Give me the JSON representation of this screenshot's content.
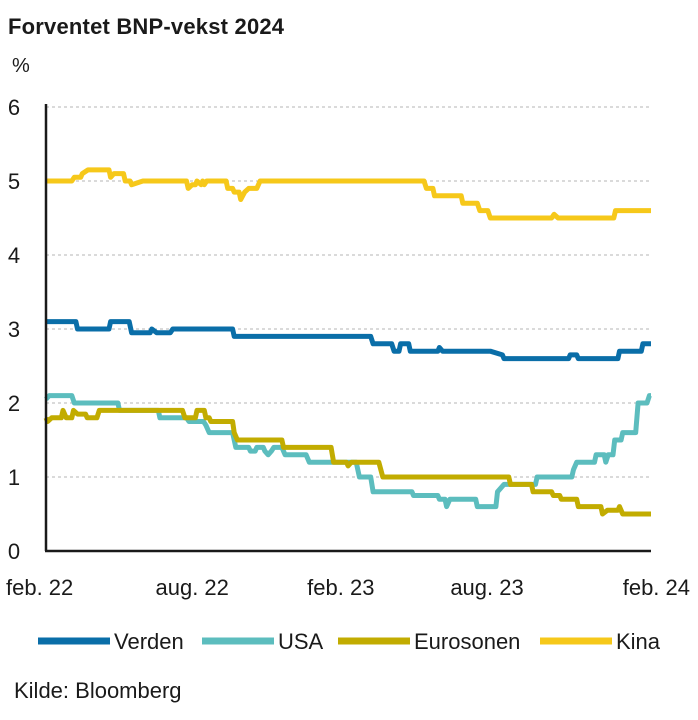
{
  "chart_data": {
    "type": "line",
    "title": "Forventet BNP-vekst 2024",
    "ylabel": "%",
    "ylim": [
      0,
      6
    ],
    "yticks": [
      "0",
      "1",
      "2",
      "3",
      "4",
      "5",
      "6"
    ],
    "xlim": [
      "2022-02-01",
      "2024-02-20"
    ],
    "xticks": [
      {
        "label": "feb. 22",
        "date": "2022-02-01"
      },
      {
        "label": "aug. 22",
        "date": "2022-08-01"
      },
      {
        "label": "feb. 23",
        "date": "2023-02-01"
      },
      {
        "label": "aug. 23",
        "date": "2023-08-01"
      },
      {
        "label": "feb. 24",
        "date": "2024-02-01"
      }
    ],
    "grid": "horizontal-dashed",
    "legend_position": "bottom",
    "source": "Kilde: Bloomberg",
    "series": [
      {
        "name": "Verden",
        "color": "#0a6ea8",
        "points": [
          [
            "2022-02-01",
            3.1
          ],
          [
            "2022-03-10",
            3.1
          ],
          [
            "2022-03-12",
            3.0
          ],
          [
            "2022-04-20",
            3.0
          ],
          [
            "2022-04-22",
            3.1
          ],
          [
            "2022-05-15",
            3.1
          ],
          [
            "2022-05-18",
            2.95
          ],
          [
            "2022-06-10",
            2.95
          ],
          [
            "2022-06-12",
            3.0
          ],
          [
            "2022-06-18",
            2.95
          ],
          [
            "2022-07-05",
            2.95
          ],
          [
            "2022-07-08",
            3.0
          ],
          [
            "2022-09-20",
            3.0
          ],
          [
            "2022-09-22",
            2.9
          ],
          [
            "2023-01-25",
            2.9
          ],
          [
            "2023-03-10",
            2.9
          ],
          [
            "2023-03-13",
            2.8
          ],
          [
            "2023-04-05",
            2.8
          ],
          [
            "2023-04-08",
            2.7
          ],
          [
            "2023-04-14",
            2.7
          ],
          [
            "2023-04-16",
            2.8
          ],
          [
            "2023-04-26",
            2.8
          ],
          [
            "2023-04-28",
            2.7
          ],
          [
            "2023-06-01",
            2.7
          ],
          [
            "2023-06-03",
            2.75
          ],
          [
            "2023-06-07",
            2.7
          ],
          [
            "2023-08-05",
            2.7
          ],
          [
            "2023-08-20",
            2.65
          ],
          [
            "2023-08-22",
            2.6
          ],
          [
            "2023-11-10",
            2.6
          ],
          [
            "2023-11-12",
            2.65
          ],
          [
            "2023-11-20",
            2.65
          ],
          [
            "2023-11-22",
            2.6
          ],
          [
            "2024-01-10",
            2.6
          ],
          [
            "2024-01-12",
            2.7
          ],
          [
            "2024-02-08",
            2.7
          ],
          [
            "2024-02-10",
            2.8
          ],
          [
            "2024-02-20",
            2.8
          ]
        ]
      },
      {
        "name": "USA",
        "color": "#5cbdbe",
        "points": [
          [
            "2022-02-01",
            2.05
          ],
          [
            "2022-02-05",
            2.1
          ],
          [
            "2022-03-05",
            2.1
          ],
          [
            "2022-03-08",
            2.0
          ],
          [
            "2022-05-01",
            2.0
          ],
          [
            "2022-05-03",
            1.9
          ],
          [
            "2022-06-20",
            1.9
          ],
          [
            "2022-06-22",
            1.8
          ],
          [
            "2022-07-25",
            1.8
          ],
          [
            "2022-07-28",
            1.75
          ],
          [
            "2022-08-15",
            1.75
          ],
          [
            "2022-08-18",
            1.7
          ],
          [
            "2022-08-22",
            1.6
          ],
          [
            "2022-09-20",
            1.6
          ],
          [
            "2022-09-24",
            1.4
          ],
          [
            "2022-10-10",
            1.4
          ],
          [
            "2022-10-12",
            1.35
          ],
          [
            "2022-10-18",
            1.35
          ],
          [
            "2022-10-20",
            1.4
          ],
          [
            "2022-10-28",
            1.4
          ],
          [
            "2022-10-30",
            1.35
          ],
          [
            "2022-11-03",
            1.3
          ],
          [
            "2022-11-07",
            1.35
          ],
          [
            "2022-11-10",
            1.4
          ],
          [
            "2022-11-20",
            1.4
          ],
          [
            "2022-11-24",
            1.3
          ],
          [
            "2022-12-20",
            1.3
          ],
          [
            "2022-12-24",
            1.2
          ],
          [
            "2023-02-20",
            1.2
          ],
          [
            "2023-02-24",
            1.0
          ],
          [
            "2023-03-10",
            1.0
          ],
          [
            "2023-03-13",
            0.8
          ],
          [
            "2023-04-30",
            0.8
          ],
          [
            "2023-05-02",
            0.75
          ],
          [
            "2023-06-01",
            0.75
          ],
          [
            "2023-06-03",
            0.7
          ],
          [
            "2023-06-10",
            0.7
          ],
          [
            "2023-06-12",
            0.6
          ],
          [
            "2023-06-16",
            0.7
          ],
          [
            "2023-07-18",
            0.7
          ],
          [
            "2023-07-20",
            0.6
          ],
          [
            "2023-08-12",
            0.6
          ],
          [
            "2023-08-14",
            0.8
          ],
          [
            "2023-08-18",
            0.85
          ],
          [
            "2023-08-22",
            0.9
          ],
          [
            "2023-09-30",
            0.9
          ],
          [
            "2023-10-02",
            1.0
          ],
          [
            "2023-11-14",
            1.0
          ],
          [
            "2023-11-16",
            1.1
          ],
          [
            "2023-11-20",
            1.2
          ],
          [
            "2023-12-12",
            1.2
          ],
          [
            "2023-12-14",
            1.3
          ],
          [
            "2023-12-24",
            1.3
          ],
          [
            "2023-12-26",
            1.2
          ],
          [
            "2023-12-29",
            1.3
          ],
          [
            "2024-01-04",
            1.3
          ],
          [
            "2024-01-06",
            1.5
          ],
          [
            "2024-01-14",
            1.5
          ],
          [
            "2024-01-16",
            1.6
          ],
          [
            "2024-02-01",
            1.6
          ],
          [
            "2024-02-04",
            2.0
          ],
          [
            "2024-02-15",
            2.0
          ],
          [
            "2024-02-18",
            2.1
          ],
          [
            "2024-02-20",
            2.1
          ]
        ]
      },
      {
        "name": "Eurosonen",
        "color": "#c2ac00",
        "points": [
          [
            "2022-02-01",
            1.8
          ],
          [
            "2022-02-03",
            1.75
          ],
          [
            "2022-02-08",
            1.8
          ],
          [
            "2022-02-20",
            1.8
          ],
          [
            "2022-02-22",
            1.9
          ],
          [
            "2022-02-26",
            1.8
          ],
          [
            "2022-03-05",
            1.8
          ],
          [
            "2022-03-07",
            1.9
          ],
          [
            "2022-03-12",
            1.85
          ],
          [
            "2022-03-22",
            1.85
          ],
          [
            "2022-03-24",
            1.8
          ],
          [
            "2022-04-05",
            1.8
          ],
          [
            "2022-04-08",
            1.9
          ],
          [
            "2022-07-20",
            1.9
          ],
          [
            "2022-07-23",
            1.8
          ],
          [
            "2022-08-05",
            1.8
          ],
          [
            "2022-08-07",
            1.9
          ],
          [
            "2022-08-16",
            1.9
          ],
          [
            "2022-08-18",
            1.8
          ],
          [
            "2022-08-22",
            1.8
          ],
          [
            "2022-08-24",
            1.75
          ],
          [
            "2022-09-20",
            1.75
          ],
          [
            "2022-09-22",
            1.6
          ],
          [
            "2022-09-26",
            1.5
          ],
          [
            "2022-11-20",
            1.5
          ],
          [
            "2022-11-22",
            1.4
          ],
          [
            "2023-01-20",
            1.4
          ],
          [
            "2023-01-23",
            1.2
          ],
          [
            "2023-02-08",
            1.2
          ],
          [
            "2023-02-10",
            1.15
          ],
          [
            "2023-02-14",
            1.2
          ],
          [
            "2023-03-20",
            1.2
          ],
          [
            "2023-03-25",
            1.0
          ],
          [
            "2023-08-28",
            1.0
          ],
          [
            "2023-08-30",
            0.9
          ],
          [
            "2023-09-25",
            0.9
          ],
          [
            "2023-09-27",
            0.8
          ],
          [
            "2023-10-20",
            0.8
          ],
          [
            "2023-10-22",
            0.75
          ],
          [
            "2023-10-30",
            0.75
          ],
          [
            "2023-11-01",
            0.7
          ],
          [
            "2023-11-20",
            0.7
          ],
          [
            "2023-11-22",
            0.6
          ],
          [
            "2023-12-20",
            0.6
          ],
          [
            "2023-12-22",
            0.5
          ],
          [
            "2023-12-28",
            0.55
          ],
          [
            "2024-01-10",
            0.55
          ],
          [
            "2024-01-12",
            0.6
          ],
          [
            "2024-01-16",
            0.5
          ],
          [
            "2024-02-20",
            0.5
          ]
        ]
      },
      {
        "name": "Kina",
        "color": "#f6c81a",
        "points": [
          [
            "2022-02-01",
            5.0
          ],
          [
            "2022-03-05",
            5.0
          ],
          [
            "2022-03-08",
            5.05
          ],
          [
            "2022-03-16",
            5.05
          ],
          [
            "2022-03-18",
            5.1
          ],
          [
            "2022-03-25",
            5.15
          ],
          [
            "2022-04-20",
            5.15
          ],
          [
            "2022-04-22",
            5.05
          ],
          [
            "2022-04-26",
            5.1
          ],
          [
            "2022-05-08",
            5.1
          ],
          [
            "2022-05-10",
            5.0
          ],
          [
            "2022-05-16",
            5.0
          ],
          [
            "2022-05-18",
            4.95
          ],
          [
            "2022-06-01",
            5.0
          ],
          [
            "2022-07-25",
            5.0
          ],
          [
            "2022-07-27",
            4.9
          ],
          [
            "2022-08-01",
            4.95
          ],
          [
            "2022-08-05",
            4.95
          ],
          [
            "2022-08-07",
            5.0
          ],
          [
            "2022-08-12",
            4.95
          ],
          [
            "2022-08-14",
            5.0
          ],
          [
            "2022-08-16",
            4.95
          ],
          [
            "2022-08-19",
            5.0
          ],
          [
            "2022-09-12",
            5.0
          ],
          [
            "2022-09-14",
            4.9
          ],
          [
            "2022-09-20",
            4.9
          ],
          [
            "2022-09-22",
            4.85
          ],
          [
            "2022-09-28",
            4.85
          ],
          [
            "2022-09-30",
            4.75
          ],
          [
            "2022-10-05",
            4.85
          ],
          [
            "2022-10-10",
            4.9
          ],
          [
            "2022-10-20",
            4.9
          ],
          [
            "2022-10-24",
            5.0
          ],
          [
            "2023-05-15",
            5.0
          ],
          [
            "2023-05-18",
            4.9
          ],
          [
            "2023-05-26",
            4.9
          ],
          [
            "2023-05-28",
            4.8
          ],
          [
            "2023-06-30",
            4.8
          ],
          [
            "2023-07-02",
            4.7
          ],
          [
            "2023-07-20",
            4.7
          ],
          [
            "2023-07-23",
            4.6
          ],
          [
            "2023-08-02",
            4.6
          ],
          [
            "2023-08-05",
            4.5
          ],
          [
            "2023-10-20",
            4.5
          ],
          [
            "2023-10-23",
            4.55
          ],
          [
            "2023-10-28",
            4.5
          ],
          [
            "2024-01-05",
            4.5
          ],
          [
            "2024-01-07",
            4.6
          ],
          [
            "2024-02-20",
            4.6
          ]
        ]
      }
    ]
  }
}
